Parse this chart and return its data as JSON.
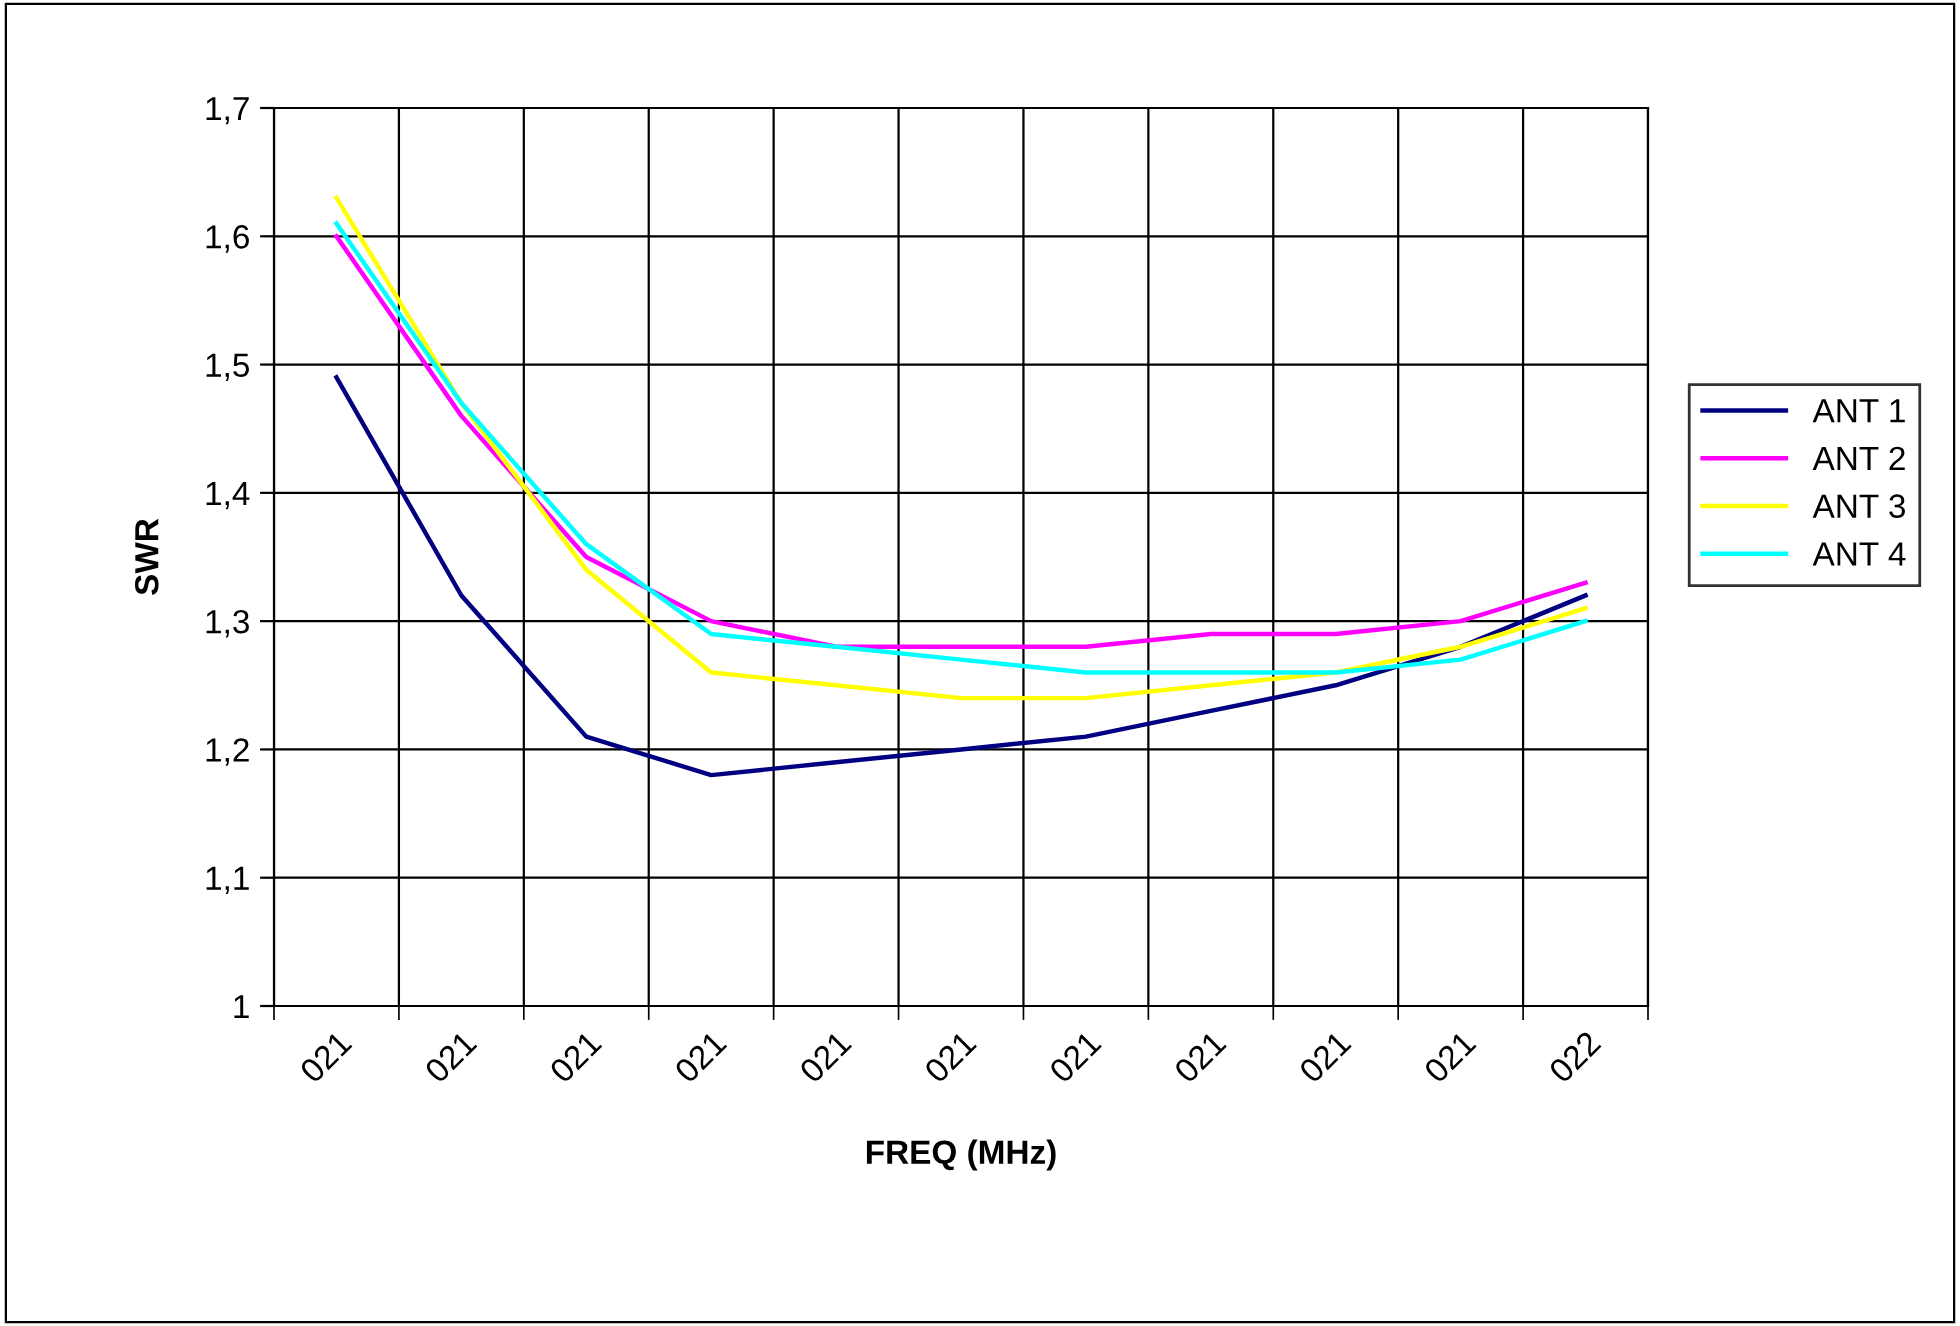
{
  "chart_data": {
    "type": "line",
    "xlabel": "FREQ (MHz)",
    "ylabel": "SWR",
    "categories": [
      "021",
      "021",
      "021",
      "021",
      "021",
      "021",
      "021",
      "021",
      "021",
      "021",
      "022"
    ],
    "series": [
      {
        "name": "ANT 1",
        "color": "#000080",
        "values": [
          1.49,
          1.32,
          1.21,
          1.18,
          1.19,
          1.2,
          1.21,
          1.23,
          1.25,
          1.28,
          1.32
        ]
      },
      {
        "name": "ANT 2",
        "color": "#ff00ff",
        "values": [
          1.6,
          1.46,
          1.35,
          1.3,
          1.28,
          1.28,
          1.28,
          1.29,
          1.29,
          1.3,
          1.33
        ]
      },
      {
        "name": "ANT 3",
        "color": "#ffff00",
        "values": [
          1.63,
          1.47,
          1.34,
          1.26,
          1.25,
          1.24,
          1.24,
          1.25,
          1.26,
          1.28,
          1.31
        ]
      },
      {
        "name": "ANT 4",
        "color": "#00ffff",
        "values": [
          1.61,
          1.47,
          1.36,
          1.29,
          1.28,
          1.27,
          1.26,
          1.26,
          1.26,
          1.27,
          1.3
        ]
      }
    ],
    "ylim": [
      1,
      1.7
    ],
    "yticks": [
      1,
      {
        "value": 1.1,
        "label": "1,1"
      },
      {
        "value": 1.2,
        "label": "1,2"
      },
      {
        "value": 1.3,
        "label": "1,3"
      },
      {
        "value": 1.4,
        "label": "1,4"
      },
      {
        "value": 1.5,
        "label": "1,5"
      },
      {
        "value": 1.6,
        "label": "1,6"
      },
      {
        "value": 1.7,
        "label": "1,7"
      }
    ],
    "grid": true,
    "legend": "right",
    "marker": "none",
    "line_style": "solid"
  }
}
